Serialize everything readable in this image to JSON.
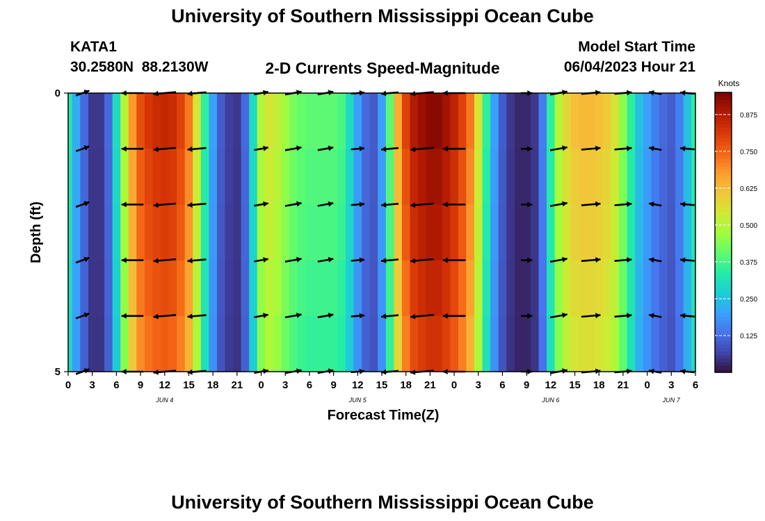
{
  "page": {
    "title": "University of Southern Mississippi Ocean Cube",
    "station_id": "KATA1",
    "station_coords": "30.2580N  88.2130W",
    "plot_title": "2-D Currents Speed-Magnitude",
    "model_start_label": "Model Start Time",
    "model_start_value": "06/04/2023 Hour 21",
    "footer_title": "University of Southern Mississippi Ocean Cube"
  },
  "chart_data": {
    "type": "heatmap",
    "title": "2-D Currents Speed-Magnitude",
    "xlabel": "Forecast Time(Z)",
    "ylabel": "Depth (ft)",
    "colorbar_label": "Knots",
    "colorbar_ticks": [
      "0.125",
      "0.250",
      "0.375",
      "0.500",
      "0.625",
      "0.750",
      "0.875"
    ],
    "colorbar_range": [
      0,
      0.95
    ],
    "y_ticks": [
      "0",
      "5"
    ],
    "ylim": [
      0,
      5
    ],
    "x_ticks": [
      "0",
      "3",
      "6",
      "9",
      "12",
      "15",
      "18",
      "21",
      "0",
      "3",
      "6",
      "9",
      "12",
      "15",
      "18",
      "21",
      "0",
      "3",
      "6",
      "9",
      "12",
      "15",
      "18",
      "21",
      "0",
      "3",
      "6"
    ],
    "date_labels": [
      {
        "label": "JUN 4",
        "hour": 12
      },
      {
        "label": "JUN 5",
        "hour": 36
      },
      {
        "label": "JUN 6",
        "hour": 60
      },
      {
        "label": "JUN 7",
        "hour": 75
      }
    ],
    "x_range_hours": [
      0,
      78
    ],
    "hours": [
      0,
      1,
      2,
      3,
      4,
      5,
      6,
      7,
      8,
      9,
      10,
      11,
      12,
      13,
      14,
      15,
      16,
      17,
      18,
      19,
      20,
      21,
      22,
      23,
      24,
      25,
      26,
      27,
      28,
      29,
      30,
      31,
      32,
      33,
      34,
      35,
      36,
      37,
      38,
      39,
      40,
      41,
      42,
      43,
      44,
      45,
      46,
      47,
      48,
      49,
      50,
      51,
      52,
      53,
      54,
      55,
      56,
      57,
      58,
      59,
      60,
      61,
      62,
      63,
      64,
      65,
      66,
      67,
      68,
      69,
      70,
      71,
      72,
      73,
      74,
      75,
      76,
      77,
      78
    ],
    "speed_knots": [
      0.33,
      0.22,
      0.12,
      0.05,
      0.05,
      0.12,
      0.3,
      0.5,
      0.68,
      0.78,
      0.82,
      0.84,
      0.85,
      0.84,
      0.8,
      0.72,
      0.55,
      0.35,
      0.2,
      0.1,
      0.06,
      0.05,
      0.12,
      0.3,
      0.5,
      0.55,
      0.52,
      0.47,
      0.43,
      0.41,
      0.4,
      0.4,
      0.4,
      0.4,
      0.38,
      0.3,
      0.2,
      0.12,
      0.1,
      0.2,
      0.4,
      0.65,
      0.8,
      0.88,
      0.91,
      0.93,
      0.93,
      0.9,
      0.86,
      0.8,
      0.72,
      0.55,
      0.35,
      0.2,
      0.1,
      0.05,
      0.03,
      0.03,
      0.05,
      0.15,
      0.35,
      0.5,
      0.58,
      0.62,
      0.63,
      0.63,
      0.62,
      0.6,
      0.55,
      0.45,
      0.35,
      0.25,
      0.2,
      0.15,
      0.12,
      0.1,
      0.15,
      0.25,
      0.35
    ],
    "depth_rows": [
      {
        "depth_ft": 0.5,
        "factor": 1.0
      },
      {
        "depth_ft": 1.5,
        "factor": 0.97
      },
      {
        "depth_ft": 2.5,
        "factor": 0.95
      },
      {
        "depth_ft": 3.5,
        "factor": 0.92
      },
      {
        "depth_ft": 4.5,
        "factor": 0.89
      }
    ],
    "vector_depths_ft": [
      0,
      1,
      2,
      3,
      4,
      5
    ],
    "vectors": [
      {
        "hour": 1.8,
        "angle_deg": 20,
        "speed": 0.3
      },
      {
        "hour": 8,
        "angle_deg": 180,
        "speed": 0.8
      },
      {
        "hour": 12,
        "angle_deg": 185,
        "speed": 0.85
      },
      {
        "hour": 16,
        "angle_deg": 185,
        "speed": 0.6
      },
      {
        "hour": 24,
        "angle_deg": 10,
        "speed": 0.3
      },
      {
        "hour": 28,
        "angle_deg": 10,
        "speed": 0.45
      },
      {
        "hour": 32,
        "angle_deg": 10,
        "speed": 0.4
      },
      {
        "hour": 36,
        "angle_deg": 5,
        "speed": 0.25
      },
      {
        "hour": 40,
        "angle_deg": 185,
        "speed": 0.5
      },
      {
        "hour": 44,
        "angle_deg": 185,
        "speed": 0.9
      },
      {
        "hour": 48,
        "angle_deg": 180,
        "speed": 0.85
      },
      {
        "hour": 57,
        "angle_deg": 0,
        "speed": 0.1
      },
      {
        "hour": 61,
        "angle_deg": 10,
        "speed": 0.5
      },
      {
        "hour": 65,
        "angle_deg": 5,
        "speed": 0.62
      },
      {
        "hour": 69,
        "angle_deg": 5,
        "speed": 0.5
      },
      {
        "hour": 73,
        "angle_deg": 170,
        "speed": 0.2
      },
      {
        "hour": 77,
        "angle_deg": 175,
        "speed": 0.3
      }
    ],
    "colormap": [
      "#30123b",
      "#4145ab",
      "#4675ed",
      "#39a2fc",
      "#1bcfd4",
      "#24eca6",
      "#61fc6c",
      "#a4fc3b",
      "#d1e834",
      "#f3c63a",
      "#fe9b2d",
      "#f36315",
      "#d93806",
      "#b11901",
      "#7a0402"
    ]
  }
}
